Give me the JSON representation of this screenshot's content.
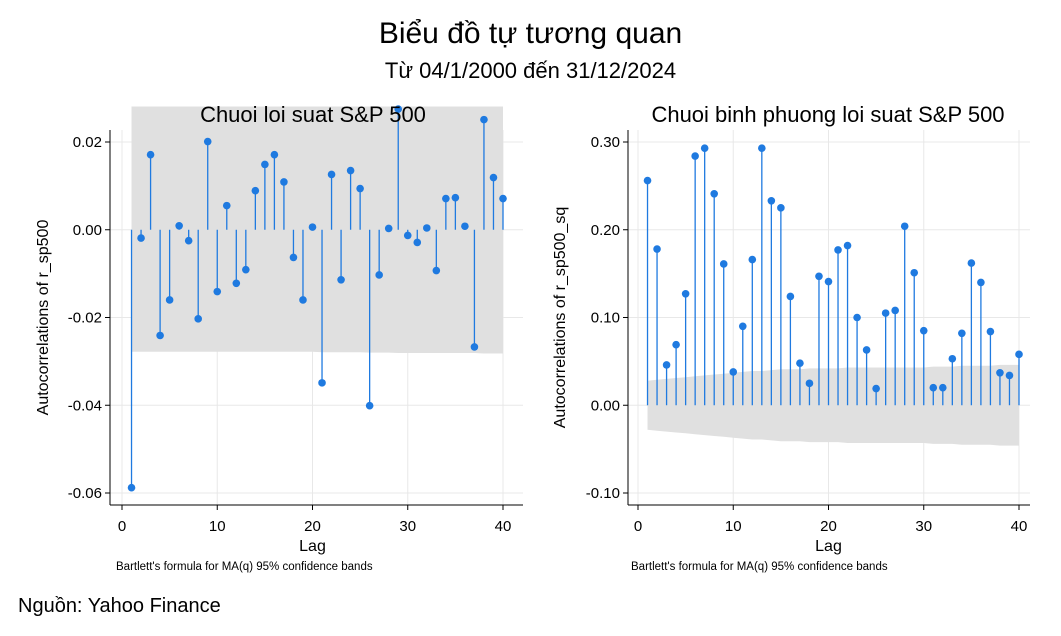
{
  "title": "Biểu đồ tự tương quan",
  "subtitle": "Từ 04/1/2000 đến 31/12/2024",
  "source": "Nguồn: Yahoo Finance",
  "colors": {
    "stem": "#1f7ae0",
    "marker": "#1f7ae0",
    "band": "#e0e0e0",
    "grid": "#e8e8e8",
    "axis": "#000000"
  },
  "chart_data": [
    {
      "type": "stem",
      "title": "Chuoi loi suat S&P 500",
      "xlabel": "Lag",
      "ylabel": "Autocorrelations of r_sp500",
      "note": "Bartlett's formula for MA(q) 95% confidence bands",
      "xlim": [
        0,
        40
      ],
      "ylim": [
        -0.06,
        0.028
      ],
      "xticks": [
        0,
        10,
        20,
        30,
        40
      ],
      "xtick_labels": [
        "0",
        "10",
        "20",
        "30",
        "40"
      ],
      "yticks": [
        -0.06,
        -0.04,
        -0.02,
        0,
        0.02
      ],
      "ytick_labels": [
        "-0.06",
        "-0.04",
        "-0.02",
        "0.00",
        "0.02"
      ],
      "grid": true,
      "lags": [
        1,
        2,
        3,
        4,
        5,
        6,
        7,
        8,
        9,
        10,
        11,
        12,
        13,
        14,
        15,
        16,
        17,
        18,
        19,
        20,
        21,
        22,
        23,
        24,
        25,
        26,
        27,
        28,
        29,
        30,
        31,
        32,
        33,
        34,
        35,
        36,
        37,
        38,
        39,
        40
      ],
      "values": [
        -0.0588,
        -0.0019,
        0.0171,
        -0.0241,
        -0.016,
        0.0009,
        -0.0025,
        -0.0203,
        0.0201,
        -0.0141,
        0.0055,
        -0.0122,
        -0.0091,
        0.0089,
        0.0149,
        0.0171,
        0.0109,
        -0.0063,
        -0.016,
        0.0006,
        -0.0349,
        0.0126,
        -0.0114,
        0.0135,
        0.0094,
        -0.0401,
        -0.0103,
        0.0003,
        0.0275,
        -0.0013,
        -0.0029,
        0.0004,
        -0.0093,
        0.0071,
        0.0073,
        0.0008,
        -0.0267,
        0.0251,
        0.0119,
        0.0071
      ],
      "band_upper": [
        0.0281,
        0.0281,
        0.0281,
        0.0281,
        0.0281,
        0.0281,
        0.0281,
        0.0281,
        0.0281,
        0.0281,
        0.0281,
        0.0281,
        0.0281,
        0.0281,
        0.0281,
        0.0281,
        0.0281,
        0.0281,
        0.0281,
        0.0281,
        0.0281,
        0.0281,
        0.0281,
        0.0281,
        0.0281,
        0.0281,
        0.0281,
        0.0281,
        0.0281,
        0.0281,
        0.0281,
        0.0281,
        0.0281,
        0.0281,
        0.0281,
        0.0281,
        0.0281,
        0.0281,
        0.0281,
        0.0281
      ],
      "band_lower": [
        -0.0278,
        -0.0278,
        -0.0278,
        -0.0278,
        -0.0278,
        -0.0278,
        -0.0278,
        -0.0278,
        -0.0278,
        -0.0278,
        -0.0278,
        -0.0278,
        -0.0278,
        -0.0278,
        -0.0278,
        -0.0278,
        -0.0278,
        -0.0278,
        -0.0278,
        -0.0278,
        -0.0279,
        -0.0279,
        -0.0279,
        -0.0279,
        -0.0279,
        -0.028,
        -0.028,
        -0.028,
        -0.0281,
        -0.0281,
        -0.0281,
        -0.0281,
        -0.0281,
        -0.0281,
        -0.0281,
        -0.0281,
        -0.0281,
        -0.0282,
        -0.0282,
        -0.0282
      ]
    },
    {
      "type": "stem",
      "title": "Chuoi binh phuong loi suat S&P 500",
      "xlabel": "Lag",
      "ylabel": "Autocorrelations of r_sp500_sq",
      "note": "Bartlett's formula for MA(q) 95% confidence bands",
      "xlim": [
        0,
        40
      ],
      "ylim": [
        -0.1,
        0.3
      ],
      "xticks": [
        0,
        10,
        20,
        30,
        40
      ],
      "xtick_labels": [
        "0",
        "10",
        "20",
        "30",
        "40"
      ],
      "yticks": [
        -0.1,
        0,
        0.1,
        0.2,
        0.3
      ],
      "ytick_labels": [
        "-0.10",
        "0.00",
        "0.10",
        "0.20",
        "0.30"
      ],
      "grid": true,
      "lags": [
        1,
        2,
        3,
        4,
        5,
        6,
        7,
        8,
        9,
        10,
        11,
        12,
        13,
        14,
        15,
        16,
        17,
        18,
        19,
        20,
        21,
        22,
        23,
        24,
        25,
        26,
        27,
        28,
        29,
        30,
        31,
        32,
        33,
        34,
        35,
        36,
        37,
        38,
        39,
        40
      ],
      "values": [
        0.256,
        0.178,
        0.046,
        0.069,
        0.127,
        0.284,
        0.293,
        0.241,
        0.161,
        0.038,
        0.09,
        0.166,
        0.293,
        0.233,
        0.225,
        0.124,
        0.048,
        0.025,
        0.147,
        0.141,
        0.177,
        0.182,
        0.1,
        0.063,
        0.019,
        0.105,
        0.108,
        0.204,
        0.151,
        0.085,
        0.02,
        0.02,
        0.053,
        0.082,
        0.162,
        0.14,
        0.084,
        0.037,
        0.034,
        0.058
      ],
      "band_upper": [
        0.028,
        0.029,
        0.03,
        0.031,
        0.032,
        0.033,
        0.034,
        0.035,
        0.036,
        0.037,
        0.038,
        0.039,
        0.039,
        0.04,
        0.041,
        0.041,
        0.041,
        0.042,
        0.042,
        0.042,
        0.042,
        0.043,
        0.043,
        0.043,
        0.043,
        0.043,
        0.043,
        0.043,
        0.043,
        0.043,
        0.044,
        0.044,
        0.044,
        0.045,
        0.045,
        0.045,
        0.045,
        0.046,
        0.046,
        0.046
      ],
      "band_lower": [
        -0.028,
        -0.029,
        -0.03,
        -0.031,
        -0.032,
        -0.033,
        -0.034,
        -0.035,
        -0.036,
        -0.037,
        -0.038,
        -0.039,
        -0.039,
        -0.04,
        -0.041,
        -0.041,
        -0.041,
        -0.042,
        -0.042,
        -0.042,
        -0.042,
        -0.043,
        -0.043,
        -0.043,
        -0.043,
        -0.043,
        -0.043,
        -0.043,
        -0.043,
        -0.043,
        -0.044,
        -0.044,
        -0.044,
        -0.045,
        -0.045,
        -0.045,
        -0.045,
        -0.046,
        -0.046,
        -0.046
      ]
    }
  ]
}
